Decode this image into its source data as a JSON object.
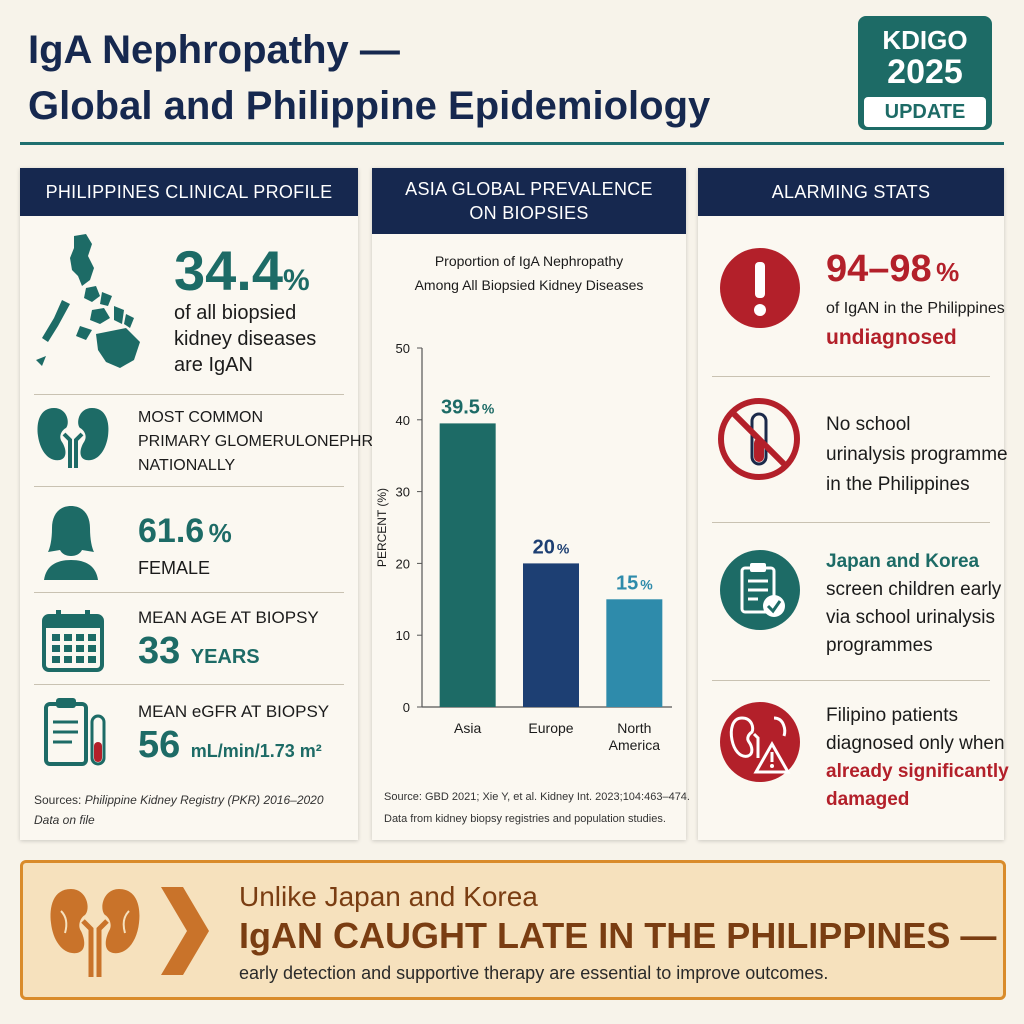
{
  "header": {
    "title_line1": "IgA Nephropathy —",
    "title_line2": "Global and Philippine Epidemiology",
    "badge_line1": "KDIGO",
    "badge_line2": "2025",
    "badge_line3": "UPDATE"
  },
  "left_panel": {
    "heading": "PHILIPPINES CLINICAL PROFILE",
    "stat_value": "34.4",
    "stat_unit": "%",
    "stat_text_1": "of all biopsied",
    "stat_text_2": "kidney diseases",
    "stat_text_3": "are IgAN",
    "common_1": "MOST COMMON",
    "common_2": "PRIMARY GLOMERULONEPHRITIS",
    "common_3": "NATIONALLY",
    "female_value": "61.6",
    "female_unit": "%",
    "female_label": "FEMALE",
    "age_label": "MEAN AGE AT BIOPSY",
    "age_value": "33",
    "age_unit": "YEARS",
    "egfr_label": "MEAN eGFR AT BIOPSY",
    "egfr_value": "56",
    "egfr_unit": "mL/min/1.73 m²",
    "source_prefix": "Sources:",
    "source_text": "Philippine Kidney Registry (PKR) 2016–2020",
    "source_text_2": "Data on file"
  },
  "mid_panel": {
    "heading_1": "ASIA GLOBAL PREVALENCE",
    "heading_2": "ON BIOPSIES",
    "source": "Source: GBD 2021; Xie Y, et al. Kidney Int. 2023;104:463–474.",
    "note": "Data from kidney biopsy registries and population studies."
  },
  "chart_data": {
    "type": "bar",
    "title": "Proportion of IgA Nephropathy Among All Biopsied Kidney Diseases",
    "title_line1": "Proportion of IgA Nephropathy",
    "title_line2": "Among All Biopsied Kidney Diseases",
    "categories": [
      "Asia",
      "Europe",
      "North America"
    ],
    "category_lines": [
      [
        "Asia"
      ],
      [
        "Europe"
      ],
      [
        "North",
        "America"
      ]
    ],
    "values": [
      39.5,
      20,
      15
    ],
    "data_labels": [
      "39.5",
      "20",
      "15"
    ],
    "label_unit": "%",
    "colors": [
      "#1d6b66",
      "#1d3f73",
      "#2e8bab"
    ],
    "xlabel": "",
    "ylabel": "PERCENT (%)",
    "ylim": [
      0,
      50
    ],
    "yticks": [
      0,
      10,
      20,
      30,
      40,
      50
    ],
    "grid": false,
    "legend": "none"
  },
  "right_panel": {
    "heading": "ALARMING STATS",
    "stat1_value": "94–98",
    "stat1_unit": "%",
    "stat1_text": "of IgAN in the Philippines",
    "stat1_emph": "undiagnosed",
    "stat2_line1": "No school",
    "stat2_line2": "urinalysis programme",
    "stat2_line3": "in the Philippines",
    "stat3_emph": "Japan and Korea",
    "stat3_line1": "screen children early",
    "stat3_line2": "via school urinalysis",
    "stat3_line3": "programmes",
    "stat4_line1": "Filipino patients",
    "stat4_line2": "diagnosed only when",
    "stat4_emph1": "already significantly",
    "stat4_emph2": "damaged"
  },
  "callout": {
    "line1": "Unlike Japan and Korea",
    "line2": "IgAN CAUGHT LATE IN THE PHILIPPINES —",
    "line3": "early detection and supportive therapy are essential to improve outcomes."
  },
  "colors": {
    "navy": "#16284f",
    "teal": "#1d6b66",
    "red": "#b3202a",
    "orange": "#d98b2b"
  },
  "icons": [
    "philippines-map-icon",
    "kidneys-icon",
    "female-silhouette-icon",
    "calendar-icon",
    "clipboard-test-tube-icon",
    "exclamation-icon",
    "no-test-tube-icon",
    "clipboard-check-icon",
    "kidney-warning-icon",
    "chevron-right-icon"
  ]
}
